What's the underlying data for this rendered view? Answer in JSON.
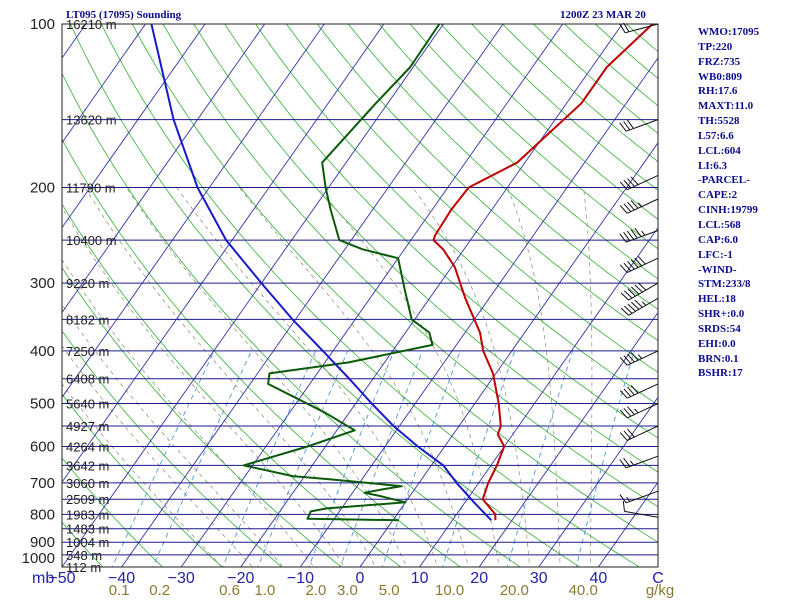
{
  "header": {
    "station": "LT095 (17095) Sounding",
    "time": "1200Z 23 MAR 20"
  },
  "indices": [
    "WMO:17095",
    "TP:220",
    "FRZ:735",
    "WB0:809",
    "RH:17.6",
    "MAXT:11.0",
    "TH:5528",
    "L57:6.6",
    "LCL:604",
    "LI:6.3",
    "-PARCEL-",
    "CAPE:2",
    "CINH:19799",
    "LCL:568",
    "CAP:6.0",
    "LFC:-1",
    "-WIND-",
    "STM:233/8",
    "HEL:18",
    "SHR+:0.0",
    "SRDS:54",
    "EHI:0.0",
    "BRN:0.1",
    "BSHR:17"
  ],
  "colors": {
    "background": "#ffffff",
    "text": "#0b0b8e",
    "isobar": "#1a1a8c",
    "skewed_isotherm": "#3333aa",
    "dry_adiabat": "#33b033",
    "mixing_ratio": "#3a8fd8",
    "moist_adiabat": "#8a8a6a",
    "temperature": "#c00000",
    "dewpoint": "#0a5a0a",
    "parcel": "#1a1acc",
    "temp_axis_label": "#2222aa",
    "mixing_ratio_label": "#8a7a30"
  },
  "chart_data": {
    "type": "skew-t log-p sounding",
    "pressure_levels_mb": [
      100,
      200,
      300,
      400,
      500,
      600,
      700,
      800,
      900,
      1000
    ],
    "pressure_axis_labels": [
      "100",
      "200",
      "300",
      "400",
      "500",
      "600",
      "700",
      "800",
      "900",
      "1000"
    ],
    "height_labels": [
      {
        "p": 100,
        "text": "16210 m"
      },
      {
        "p": 150,
        "text": "13620 m"
      },
      {
        "p": 200,
        "text": "11790 m"
      },
      {
        "p": 250,
        "text": "10400 m"
      },
      {
        "p": 300,
        "text": "9220 m"
      },
      {
        "p": 350,
        "text": "8182 m"
      },
      {
        "p": 400,
        "text": "7250 m"
      },
      {
        "p": 450,
        "text": "6408 m"
      },
      {
        "p": 500,
        "text": "5640 m"
      },
      {
        "p": 550,
        "text": "4927 m"
      },
      {
        "p": 600,
        "text": "4264 m"
      },
      {
        "p": 650,
        "text": "3642 m"
      },
      {
        "p": 700,
        "text": "3060 m"
      },
      {
        "p": 750,
        "text": "2509 m"
      },
      {
        "p": 800,
        "text": "1983 m"
      },
      {
        "p": 850,
        "text": "1483 m"
      },
      {
        "p": 900,
        "text": "1004 m"
      },
      {
        "p": 950,
        "text": "548 m"
      },
      {
        "p": 1000,
        "text": "112 m"
      }
    ],
    "temperature_axis": {
      "unit_left": "mb",
      "unit_right": "C",
      "range_c": [
        -50,
        50
      ],
      "ticks": [
        -50,
        -40,
        -30,
        -20,
        -10,
        0,
        10,
        20,
        30,
        40
      ],
      "tick_labels": [
        "−50",
        "−40",
        "−30",
        "−20",
        "−10",
        "0",
        "10",
        "20",
        "30",
        "40"
      ]
    },
    "mixing_ratio_axis": {
      "unit": "g/kg",
      "ticks": [
        0.1,
        0.2,
        0.6,
        1.0,
        2.0,
        3.0,
        5.0,
        10.0,
        20.0,
        40.0
      ],
      "tick_labels": [
        "0.1",
        "0.2",
        "0.6",
        "1.0",
        "2.0",
        "3.0",
        "5.0",
        "10.0",
        "20.0",
        "40.0"
      ]
    },
    "skew_deg_c_per_decade": 64,
    "series": [
      {
        "key": "temperature",
        "points": [
          [
            820,
            17.2
          ],
          [
            800,
            16.5
          ],
          [
            750,
            12.6
          ],
          [
            700,
            11.6
          ],
          [
            650,
            11.0
          ],
          [
            600,
            10.0
          ],
          [
            570,
            7.5
          ],
          [
            550,
            7.0
          ],
          [
            500,
            4.0
          ],
          [
            440,
            -0.5
          ],
          [
            400,
            -4.8
          ],
          [
            370,
            -7.5
          ],
          [
            320,
            -14.0
          ],
          [
            280,
            -19.5
          ],
          [
            260,
            -23.5
          ],
          [
            250,
            -26.2
          ],
          [
            245,
            -26.5
          ],
          [
            220,
            -26.8
          ],
          [
            200,
            -26.5
          ],
          [
            180,
            -21.3
          ],
          [
            140,
            -17.5
          ],
          [
            120,
            -17.5
          ],
          [
            100,
            -14.9
          ]
        ]
      },
      {
        "key": "dewpoint",
        "points": [
          [
            820,
            1.0
          ],
          [
            815,
            -14.5
          ],
          [
            790,
            -14.8
          ],
          [
            780,
            -12.5
          ],
          [
            760,
            0.0
          ],
          [
            740,
            -5.0
          ],
          [
            730,
            -8.0
          ],
          [
            720,
            -5.5
          ],
          [
            710,
            -2.5
          ],
          [
            690,
            -15.0
          ],
          [
            680,
            -22.0
          ],
          [
            650,
            -31.5
          ],
          [
            600,
            -23.0
          ],
          [
            560,
            -17.0
          ],
          [
            520,
            -24.0
          ],
          [
            460,
            -37.0
          ],
          [
            440,
            -38.0
          ],
          [
            420,
            -26.0
          ],
          [
            390,
            -14.0
          ],
          [
            370,
            -16.0
          ],
          [
            350,
            -20.5
          ],
          [
            310,
            -25.0
          ],
          [
            270,
            -30.0
          ],
          [
            260,
            -37.0
          ],
          [
            250,
            -42.0
          ],
          [
            220,
            -47.0
          ],
          [
            200,
            -50.5
          ],
          [
            180,
            -54.0
          ],
          [
            140,
            -52.0
          ],
          [
            120,
            -50.5
          ],
          [
            100,
            -50.7
          ]
        ]
      },
      {
        "key": "parcel",
        "points": [
          [
            820,
            16.5
          ],
          [
            760,
            11.5
          ],
          [
            700,
            6.3
          ],
          [
            650,
            2.0
          ],
          [
            600,
            -4.5
          ],
          [
            550,
            -11.0
          ],
          [
            500,
            -17.3
          ],
          [
            450,
            -24.0
          ],
          [
            400,
            -31.7
          ],
          [
            350,
            -40.5
          ],
          [
            300,
            -50.0
          ],
          [
            250,
            -61.0
          ],
          [
            200,
            -72.0
          ],
          [
            150,
            -84.0
          ],
          [
            100,
            -99.0
          ]
        ]
      }
    ],
    "wind_barbs": [
      {
        "p": 810,
        "dir": 280,
        "kt": 10
      },
      {
        "p": 725,
        "dir": 250,
        "kt": 15
      },
      {
        "p": 625,
        "dir": 250,
        "kt": 25
      },
      {
        "p": 550,
        "dir": 245,
        "kt": 30
      },
      {
        "p": 500,
        "dir": 245,
        "kt": 35
      },
      {
        "p": 460,
        "dir": 245,
        "kt": 40
      },
      {
        "p": 400,
        "dir": 245,
        "kt": 45
      },
      {
        "p": 320,
        "dir": 240,
        "kt": 55
      },
      {
        "p": 300,
        "dir": 240,
        "kt": 60
      },
      {
        "p": 270,
        "dir": 245,
        "kt": 60
      },
      {
        "p": 240,
        "dir": 250,
        "kt": 55
      },
      {
        "p": 210,
        "dir": 245,
        "kt": 45
      },
      {
        "p": 190,
        "dir": 245,
        "kt": 40
      },
      {
        "p": 150,
        "dir": 250,
        "kt": 30
      },
      {
        "p": 100,
        "dir": 255,
        "kt": 20
      }
    ]
  }
}
